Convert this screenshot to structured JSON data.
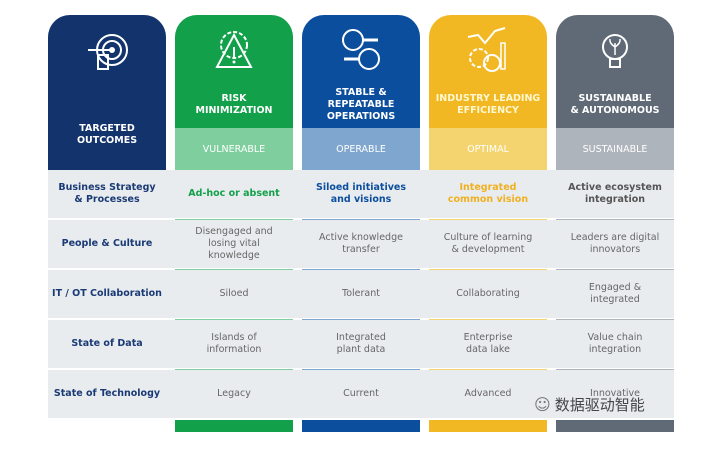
{
  "colors": {
    "navy": "#12336b",
    "green": "#13a04a",
    "blue": "#0b4e9e",
    "yellow": "#f2b824",
    "gray": "#5f6a76"
  },
  "header": {
    "outcome": {
      "title": "TARGETED\nOUTCOMES",
      "icon": "target-arrow-icon"
    },
    "columns": [
      {
        "title": "RISK\nMINIMIZATION",
        "level": "VULNERABLE",
        "icon": "gear-warning-icon",
        "color": "#13a04a",
        "light": "#7fcf9e"
      },
      {
        "title": "STABLE &\nREPEATABLE\nOPERATIONS",
        "level": "OPERABLE",
        "icon": "factory-wrench-people-icon",
        "color": "#0b4e9e",
        "light": "#7fa6cf"
      },
      {
        "title": "INDUSTRY LEADING\nEFFICIENCY",
        "level": "OPTIMAL",
        "icon": "gears-clock-chart-icon",
        "color": "#f2b824",
        "light": "#f4d46e"
      },
      {
        "title": "SUSTAINABLE\n& AUTONOMOUS",
        "level": "SUSTAINABLE",
        "icon": "lightbulb-plant-icon",
        "color": "#5f6a76",
        "light": "#aeb4bb"
      }
    ]
  },
  "rows": [
    {
      "label": "Business Strategy\n& Processes",
      "cells": [
        "Ad-hoc or absent",
        "Siloed initiatives\nand visions",
        "Integrated\ncommon vision",
        "Active ecosystem\nintegration"
      ]
    },
    {
      "label": "People & Culture",
      "cells": [
        "Disengaged and\nlosing vital\nknowledge",
        "Active knowledge\ntransfer",
        "Culture of learning\n& development",
        "Leaders are digital\ninnovators"
      ]
    },
    {
      "label": "IT / OT Collaboration",
      "cells": [
        "Siloed",
        "Tolerant",
        "Collaborating",
        "Engaged &\nintegrated"
      ]
    },
    {
      "label": "State of Data",
      "cells": [
        "Islands of\ninformation",
        "Integrated\nplant data",
        "Enterprise\ndata lake",
        "Value chain\nintegration"
      ]
    },
    {
      "label": "State of Technology",
      "cells": [
        "Legacy",
        "Current",
        "Advanced",
        "Innovative"
      ]
    }
  ],
  "watermark": "数据驱动智能"
}
